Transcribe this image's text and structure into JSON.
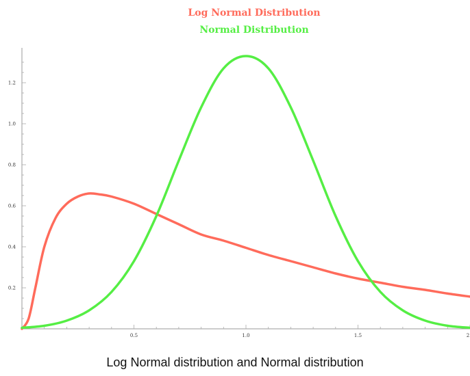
{
  "chart_data": {
    "type": "line",
    "title": "",
    "caption": "Log Normal distribution and Normal distribution",
    "xlabel": "",
    "ylabel": "",
    "xlim": [
      0,
      2
    ],
    "ylim": [
      0,
      1.33
    ],
    "x_ticks": [
      "0.5",
      "1.0",
      "1.5",
      "2"
    ],
    "y_ticks": [
      "0.2",
      "0.4",
      "0.6",
      "0.8",
      "1.0",
      "1.2"
    ],
    "legend_placement": "top-center",
    "grid": false,
    "series": [
      {
        "name": "Log Normal Distribution",
        "color": "#ff6b5b",
        "x": [
          0,
          0.03,
          0.06,
          0.1,
          0.15,
          0.2,
          0.25,
          0.3,
          0.35,
          0.4,
          0.5,
          0.6,
          0.7,
          0.8,
          0.9,
          1.0,
          1.1,
          1.2,
          1.3,
          1.4,
          1.5,
          1.6,
          1.7,
          1.8,
          1.9,
          2.0
        ],
        "y": [
          0,
          0.05,
          0.2,
          0.4,
          0.54,
          0.61,
          0.645,
          0.66,
          0.655,
          0.645,
          0.61,
          0.56,
          0.51,
          0.46,
          0.43,
          0.395,
          0.36,
          0.33,
          0.3,
          0.27,
          0.245,
          0.225,
          0.205,
          0.19,
          0.172,
          0.157
        ]
      },
      {
        "name": "Normal Distribution",
        "color": "#55ee44",
        "x": [
          0,
          0.1,
          0.2,
          0.3,
          0.4,
          0.5,
          0.6,
          0.7,
          0.8,
          0.9,
          1.0,
          1.1,
          1.2,
          1.3,
          1.4,
          1.5,
          1.6,
          1.7,
          1.8,
          1.9,
          2.0
        ],
        "y": [
          0.005,
          0.015,
          0.04,
          0.09,
          0.18,
          0.33,
          0.55,
          0.82,
          1.08,
          1.27,
          1.33,
          1.27,
          1.08,
          0.82,
          0.55,
          0.33,
          0.18,
          0.09,
          0.04,
          0.015,
          0.005
        ]
      }
    ]
  }
}
